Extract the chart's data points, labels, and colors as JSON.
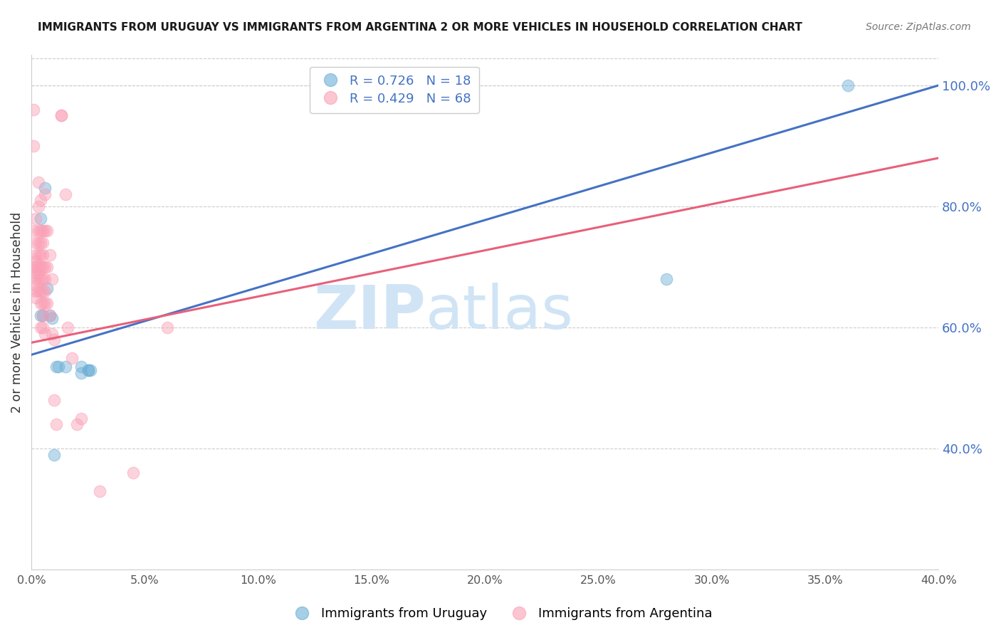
{
  "title": "IMMIGRANTS FROM URUGUAY VS IMMIGRANTS FROM ARGENTINA 2 OR MORE VEHICLES IN HOUSEHOLD CORRELATION CHART",
  "source": "Source: ZipAtlas.com",
  "ylabel_left": "2 or more Vehicles in Household",
  "ylabel_right_ticks": [
    40.0,
    60.0,
    80.0,
    100.0
  ],
  "xmin": 0.0,
  "xmax": 0.4,
  "ymin": 0.2,
  "ymax": 1.05,
  "uruguay_color": "#6baed6",
  "argentina_color": "#fa9fb5",
  "uruguay_label": "Immigrants from Uruguay",
  "argentina_label": "Immigrants from Argentina",
  "uruguay_R": 0.726,
  "uruguay_N": 18,
  "argentina_R": 0.429,
  "argentina_N": 68,
  "uruguay_line": [
    0.0,
    0.555,
    0.4,
    1.0
  ],
  "argentina_line": [
    0.0,
    0.575,
    0.4,
    0.88
  ],
  "uruguay_scatter": [
    [
      0.004,
      0.78
    ],
    [
      0.004,
      0.62
    ],
    [
      0.005,
      0.62
    ],
    [
      0.006,
      0.83
    ],
    [
      0.007,
      0.665
    ],
    [
      0.008,
      0.62
    ],
    [
      0.009,
      0.615
    ],
    [
      0.01,
      0.39
    ],
    [
      0.011,
      0.535
    ],
    [
      0.012,
      0.535
    ],
    [
      0.015,
      0.535
    ],
    [
      0.022,
      0.535
    ],
    [
      0.022,
      0.525
    ],
    [
      0.025,
      0.53
    ],
    [
      0.025,
      0.53
    ],
    [
      0.026,
      0.53
    ],
    [
      0.28,
      0.68
    ],
    [
      0.36,
      1.0
    ]
  ],
  "argentina_scatter": [
    [
      0.001,
      0.96
    ],
    [
      0.001,
      0.9
    ],
    [
      0.001,
      0.76
    ],
    [
      0.001,
      0.7
    ],
    [
      0.002,
      0.78
    ],
    [
      0.002,
      0.74
    ],
    [
      0.002,
      0.72
    ],
    [
      0.002,
      0.71
    ],
    [
      0.002,
      0.7
    ],
    [
      0.002,
      0.69
    ],
    [
      0.002,
      0.68
    ],
    [
      0.002,
      0.67
    ],
    [
      0.002,
      0.66
    ],
    [
      0.002,
      0.65
    ],
    [
      0.003,
      0.84
    ],
    [
      0.003,
      0.8
    ],
    [
      0.003,
      0.76
    ],
    [
      0.003,
      0.74
    ],
    [
      0.003,
      0.72
    ],
    [
      0.003,
      0.7
    ],
    [
      0.003,
      0.69
    ],
    [
      0.003,
      0.68
    ],
    [
      0.003,
      0.66
    ],
    [
      0.004,
      0.81
    ],
    [
      0.004,
      0.76
    ],
    [
      0.004,
      0.74
    ],
    [
      0.004,
      0.72
    ],
    [
      0.004,
      0.7
    ],
    [
      0.004,
      0.68
    ],
    [
      0.004,
      0.66
    ],
    [
      0.004,
      0.64
    ],
    [
      0.004,
      0.6
    ],
    [
      0.005,
      0.76
    ],
    [
      0.005,
      0.74
    ],
    [
      0.005,
      0.72
    ],
    [
      0.005,
      0.7
    ],
    [
      0.005,
      0.68
    ],
    [
      0.005,
      0.66
    ],
    [
      0.005,
      0.64
    ],
    [
      0.005,
      0.62
    ],
    [
      0.005,
      0.6
    ],
    [
      0.006,
      0.82
    ],
    [
      0.006,
      0.76
    ],
    [
      0.006,
      0.7
    ],
    [
      0.006,
      0.68
    ],
    [
      0.006,
      0.66
    ],
    [
      0.006,
      0.64
    ],
    [
      0.006,
      0.59
    ],
    [
      0.007,
      0.76
    ],
    [
      0.007,
      0.7
    ],
    [
      0.007,
      0.64
    ],
    [
      0.008,
      0.72
    ],
    [
      0.008,
      0.62
    ],
    [
      0.009,
      0.68
    ],
    [
      0.009,
      0.59
    ],
    [
      0.01,
      0.58
    ],
    [
      0.01,
      0.48
    ],
    [
      0.011,
      0.44
    ],
    [
      0.013,
      0.95
    ],
    [
      0.013,
      0.95
    ],
    [
      0.015,
      0.82
    ],
    [
      0.016,
      0.6
    ],
    [
      0.018,
      0.55
    ],
    [
      0.02,
      0.44
    ],
    [
      0.022,
      0.45
    ],
    [
      0.03,
      0.33
    ],
    [
      0.045,
      0.36
    ],
    [
      0.06,
      0.6
    ]
  ],
  "grid_color": "#cccccc",
  "axis_color": "#4472C4",
  "background_color": "#ffffff",
  "watermark_zip": "ZIP",
  "watermark_atlas": "atlas",
  "watermark_color": "#d0e4f5"
}
